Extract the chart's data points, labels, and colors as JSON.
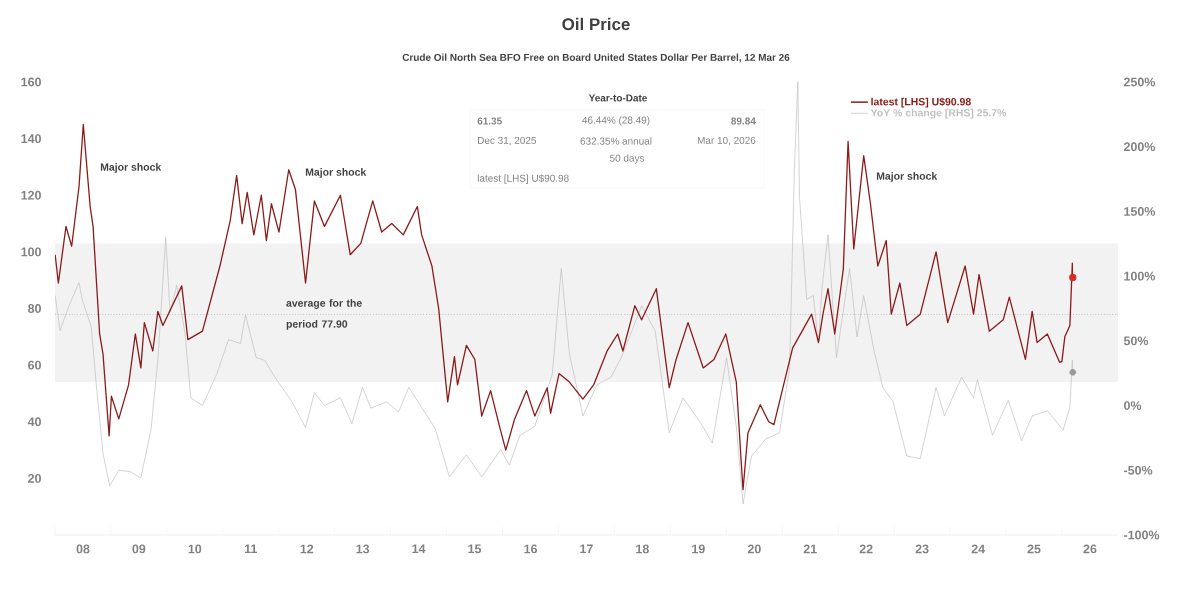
{
  "chart_data": {
    "type": "line",
    "title": "Oil Price",
    "subtitle": "Crude Oil North Sea BFO Free on Board United States Dollar Per Barrel, 12 Mar 26",
    "xlim": [
      "2008-01-01",
      "2027-01-01"
    ],
    "xticks": [
      {
        "value": "2008-01-01",
        "label": null
      },
      {
        "value": "2008-07-02",
        "label": "08"
      },
      {
        "value": "2009-01-01",
        "label": null
      },
      {
        "value": "2009-07-02",
        "label": "09"
      },
      {
        "value": "2010-01-01",
        "label": null
      },
      {
        "value": "2010-07-02",
        "label": "10"
      },
      {
        "value": "2011-01-01",
        "label": null
      },
      {
        "value": "2011-07-02",
        "label": "11"
      },
      {
        "value": "2012-01-01",
        "label": null
      },
      {
        "value": "2012-07-02",
        "label": "12"
      },
      {
        "value": "2013-01-01",
        "label": null
      },
      {
        "value": "2013-07-02",
        "label": "13"
      },
      {
        "value": "2014-01-01",
        "label": null
      },
      {
        "value": "2014-07-02",
        "label": "14"
      },
      {
        "value": "2015-01-01",
        "label": null
      },
      {
        "value": "2015-07-02",
        "label": "15"
      },
      {
        "value": "2016-01-01",
        "label": null
      },
      {
        "value": "2016-07-02",
        "label": "16"
      },
      {
        "value": "2017-01-01",
        "label": null
      },
      {
        "value": "2017-07-02",
        "label": "17"
      },
      {
        "value": "2018-01-01",
        "label": null
      },
      {
        "value": "2018-07-02",
        "label": "18"
      },
      {
        "value": "2019-01-01",
        "label": null
      },
      {
        "value": "2019-07-02",
        "label": "19"
      },
      {
        "value": "2020-01-01",
        "label": null
      },
      {
        "value": "2020-07-02",
        "label": "20"
      },
      {
        "value": "2021-01-01",
        "label": null
      },
      {
        "value": "2021-07-02",
        "label": "21"
      },
      {
        "value": "2022-01-01",
        "label": null
      },
      {
        "value": "2022-07-02",
        "label": "22"
      },
      {
        "value": "2023-01-01",
        "label": null
      },
      {
        "value": "2023-07-02",
        "label": "23"
      },
      {
        "value": "2024-01-01",
        "label": null
      },
      {
        "value": "2024-07-02",
        "label": "24"
      },
      {
        "value": "2025-01-01",
        "label": null
      },
      {
        "value": "2025-07-02",
        "label": "25"
      },
      {
        "value": "2026-01-01",
        "label": null
      },
      {
        "value": "2026-07-02",
        "label": "26"
      }
    ],
    "ylim": [
      0,
      160
    ],
    "yticks": [
      20,
      40,
      60,
      80,
      100,
      120,
      140,
      160
    ],
    "y2lim": [
      -100,
      250
    ],
    "y2ticks": [
      {
        "value": -100,
        "label": "-100%"
      },
      {
        "value": -50,
        "label": "-50%"
      },
      {
        "value": 0,
        "label": "0%"
      },
      {
        "value": 50,
        "label": "50%"
      },
      {
        "value": 100,
        "label": "100%"
      },
      {
        "value": 150,
        "label": "150%"
      },
      {
        "value": 200,
        "label": "200%"
      },
      {
        "value": 250,
        "label": "250%"
      }
    ],
    "legend": "top right",
    "series": [
      {
        "name": "latest [LHS] U$90.98",
        "color": "#8b1a1a",
        "x": [
          "2008-01-02",
          "2008-01-23",
          "2008-03-13",
          "2008-04-19",
          "2008-06-06",
          "2008-07-04",
          "2008-08-18",
          "2008-09-06",
          "2008-10-19",
          "2008-11-10",
          "2008-12-20",
          "2009-01-04",
          "2009-02-21",
          "2009-04-26",
          "2009-06-09",
          "2009-07-15",
          "2009-08-07",
          "2009-10-01",
          "2009-11-03",
          "2009-12-06",
          "2010-04-08",
          "2010-05-18",
          "2010-08-21",
          "2010-12-13",
          "2011-02-18",
          "2011-04-01",
          "2011-05-07",
          "2011-06-09",
          "2011-07-22",
          "2011-09-09",
          "2011-10-12",
          "2011-11-14",
          "2012-01-02",
          "2012-03-06",
          "2012-04-19",
          "2012-06-24",
          "2012-08-21",
          "2012-10-26",
          "2013-02-07",
          "2013-04-12",
          "2013-06-20",
          "2013-09-06",
          "2013-11-03",
          "2014-01-08",
          "2014-03-24",
          "2014-06-24",
          "2014-07-22",
          "2014-09-27",
          "2014-11-10",
          "2015-01-08",
          "2015-02-21",
          "2015-03-13",
          "2015-05-10",
          "2015-07-04",
          "2015-08-18",
          "2015-10-15",
          "2015-12-09",
          "2016-01-22",
          "2016-03-20",
          "2016-06-06",
          "2016-07-30",
          "2016-10-19",
          "2016-11-10",
          "2017-01-04",
          "2017-03-13",
          "2017-06-09",
          "2017-08-18",
          "2017-11-14",
          "2018-01-22",
          "2018-02-25",
          "2018-05-14",
          "2018-06-27",
          "2018-10-01",
          "2018-12-24",
          "2019-02-07",
          "2019-04-26",
          "2019-08-03",
          "2019-10-12",
          "2019-12-28",
          "2020-03-06",
          "2020-04-08",
          "2020-04-19",
          "2020-05-21",
          "2020-08-10",
          "2020-10-04",
          "2020-11-07",
          "2021-03-09",
          "2021-07-11",
          "2021-08-25",
          "2021-09-23",
          "2021-10-26",
          "2021-12-09",
          "2022-02-03",
          "2022-03-06",
          "2022-04-12",
          "2022-06-16",
          "2022-07-30",
          "2022-09-16",
          "2022-11-10",
          "2022-12-13",
          "2023-02-07",
          "2023-03-24",
          "2023-06-20",
          "2023-10-01",
          "2023-12-16",
          "2024-04-08",
          "2024-06-02",
          "2024-07-08",
          "2024-09-13",
          "2024-12-13",
          "2025-01-22",
          "2025-05-07",
          "2025-06-20",
          "2025-07-22",
          "2025-09-27",
          "2025-12-16",
          "2025-12-31",
          "2026-01-19",
          "2026-02-21",
          "2026-03-09",
          "2026-03-10",
          "2026-03-12"
        ],
        "values": [
          99,
          89,
          109,
          102,
          123,
          145,
          116,
          109,
          71,
          64,
          35,
          49,
          41,
          53,
          71,
          59,
          75,
          65,
          79,
          74,
          88,
          69,
          72,
          95,
          111,
          127,
          110,
          121,
          106,
          120,
          104,
          117,
          107,
          129,
          122,
          89,
          118,
          109,
          120,
          99,
          103,
          118,
          107,
          110,
          106,
          116,
          106,
          95,
          80,
          47,
          63,
          53,
          67,
          62,
          42,
          51,
          39,
          30,
          41,
          51,
          42,
          52,
          43,
          57,
          54,
          48,
          53,
          65,
          71,
          65,
          81,
          76,
          87,
          52,
          62,
          75,
          59,
          62,
          71,
          54,
          25,
          16,
          36,
          46,
          40,
          39,
          66,
          78,
          68,
          78,
          87,
          71,
          94,
          139,
          101,
          134,
          117,
          95,
          104,
          78,
          89,
          74,
          78,
          100,
          75,
          95,
          78,
          92,
          72,
          76,
          84,
          62,
          79,
          68,
          71,
          61,
          61.35,
          70,
          74,
          96,
          89.84,
          90.98
        ]
      },
      {
        "name": "YoY % change [RHS] 25.7%",
        "color": "#bfbfbf",
        "axis": "y2",
        "x": [
          "2008-01-02",
          "2008-02-03",
          "2008-04-01",
          "2008-06-06",
          "2008-06-27",
          "2008-08-25",
          "2008-09-27",
          "2008-11-10",
          "2008-12-24",
          "2009-02-21",
          "2009-05-07",
          "2009-07-15",
          "2009-09-20",
          "2009-11-03",
          "2009-12-24",
          "2010-01-22",
          "2010-03-06",
          "2010-04-29",
          "2010-06-06",
          "2010-08-21",
          "2010-11-21",
          "2011-02-07",
          "2011-04-26",
          "2011-05-29",
          "2011-08-07",
          "2011-10-01",
          "2011-12-06",
          "2012-03-27",
          "2012-06-24",
          "2012-08-21",
          "2012-10-26",
          "2013-02-07",
          "2013-04-23",
          "2013-07-01",
          "2013-08-25",
          "2013-12-06",
          "2014-02-21",
          "2014-04-29",
          "2014-07-15",
          "2014-10-19",
          "2015-01-19",
          "2015-05-10",
          "2015-08-18",
          "2015-12-20",
          "2016-02-14",
          "2016-04-23",
          "2016-07-30",
          "2016-11-21",
          "2017-01-19",
          "2017-03-13",
          "2017-06-09",
          "2017-09-09",
          "2017-12-09",
          "2018-02-14",
          "2018-04-19",
          "2018-06-27",
          "2018-09-23",
          "2018-12-24",
          "2019-03-24",
          "2019-07-15",
          "2019-10-01",
          "2020-01-02",
          "2020-03-06",
          "2020-04-19",
          "2020-06-13",
          "2020-09-13",
          "2020-12-13",
          "2021-02-18",
          "2021-03-20",
          "2021-04-12",
          "2021-04-23",
          "2021-06-09",
          "2021-07-22",
          "2021-08-25",
          "2021-09-16",
          "2021-10-26",
          "2021-12-20",
          "2022-03-16",
          "2022-05-03",
          "2022-06-16",
          "2022-08-21",
          "2022-10-19",
          "2022-12-24",
          "2023-03-24",
          "2023-06-20",
          "2023-10-01",
          "2023-11-25",
          "2024-03-16",
          "2024-06-02",
          "2024-06-27",
          "2024-10-04",
          "2025-01-15",
          "2025-04-12",
          "2025-06-20",
          "2025-09-27",
          "2026-01-08",
          "2026-02-21",
          "2026-03-09",
          "2026-03-12"
        ],
        "values": [
          85,
          58,
          77,
          95,
          82,
          61,
          16,
          -37,
          -62,
          -50,
          -51,
          -56,
          -18,
          35,
          130,
          72,
          93,
          56,
          6,
          0,
          24,
          51,
          48,
          70,
          37,
          35,
          22,
          3,
          -17,
          10,
          0,
          6,
          -14,
          14,
          -2,
          3,
          -5,
          14,
          0,
          -18,
          -55,
          -38,
          -55,
          -34,
          -46,
          -23,
          -16,
          24,
          106,
          40,
          -8,
          16,
          22,
          37,
          56,
          77,
          58,
          -21,
          6,
          -13,
          -29,
          37,
          -16,
          -76,
          -39,
          -26,
          -21,
          29,
          180,
          250,
          161,
          82,
          85,
          48,
          90,
          132,
          37,
          106,
          53,
          85,
          43,
          14,
          3,
          -39,
          -41,
          14,
          -8,
          22,
          6,
          20,
          -23,
          4,
          -27,
          -8,
          -4,
          -19,
          -1,
          35,
          25.7
        ]
      },
      {
        "type": "scatter",
        "color": "#d62c2c",
        "marker": "circle",
        "x": [
          "2026-03-12"
        ],
        "values": [
          90.98
        ]
      },
      {
        "type": "scatter",
        "color": "#999999",
        "marker": "circle",
        "axis": "y2",
        "x": [
          "2026-03-12"
        ],
        "values": [
          25.7
        ]
      }
    ],
    "bands": [
      {
        "axis": "y",
        "from": 54,
        "to": 103,
        "color": "#f2f2f2"
      }
    ],
    "ref_lines": [
      {
        "axis": "y",
        "value": 77.9,
        "label": "average for the period 77.90",
        "color": "#a6a6a6",
        "line_style": "dotted"
      }
    ],
    "annotations": [
      "Year-to-Date",
      "61.35",
      "46.44% (28.49)",
      "89.84",
      "Dec 31, 2025",
      "632.35% annual",
      "Mar 10, 2026",
      "50 days",
      "latest [LHS] U$90.98",
      "Major shock",
      "Major shock",
      "Major shock"
    ]
  }
}
